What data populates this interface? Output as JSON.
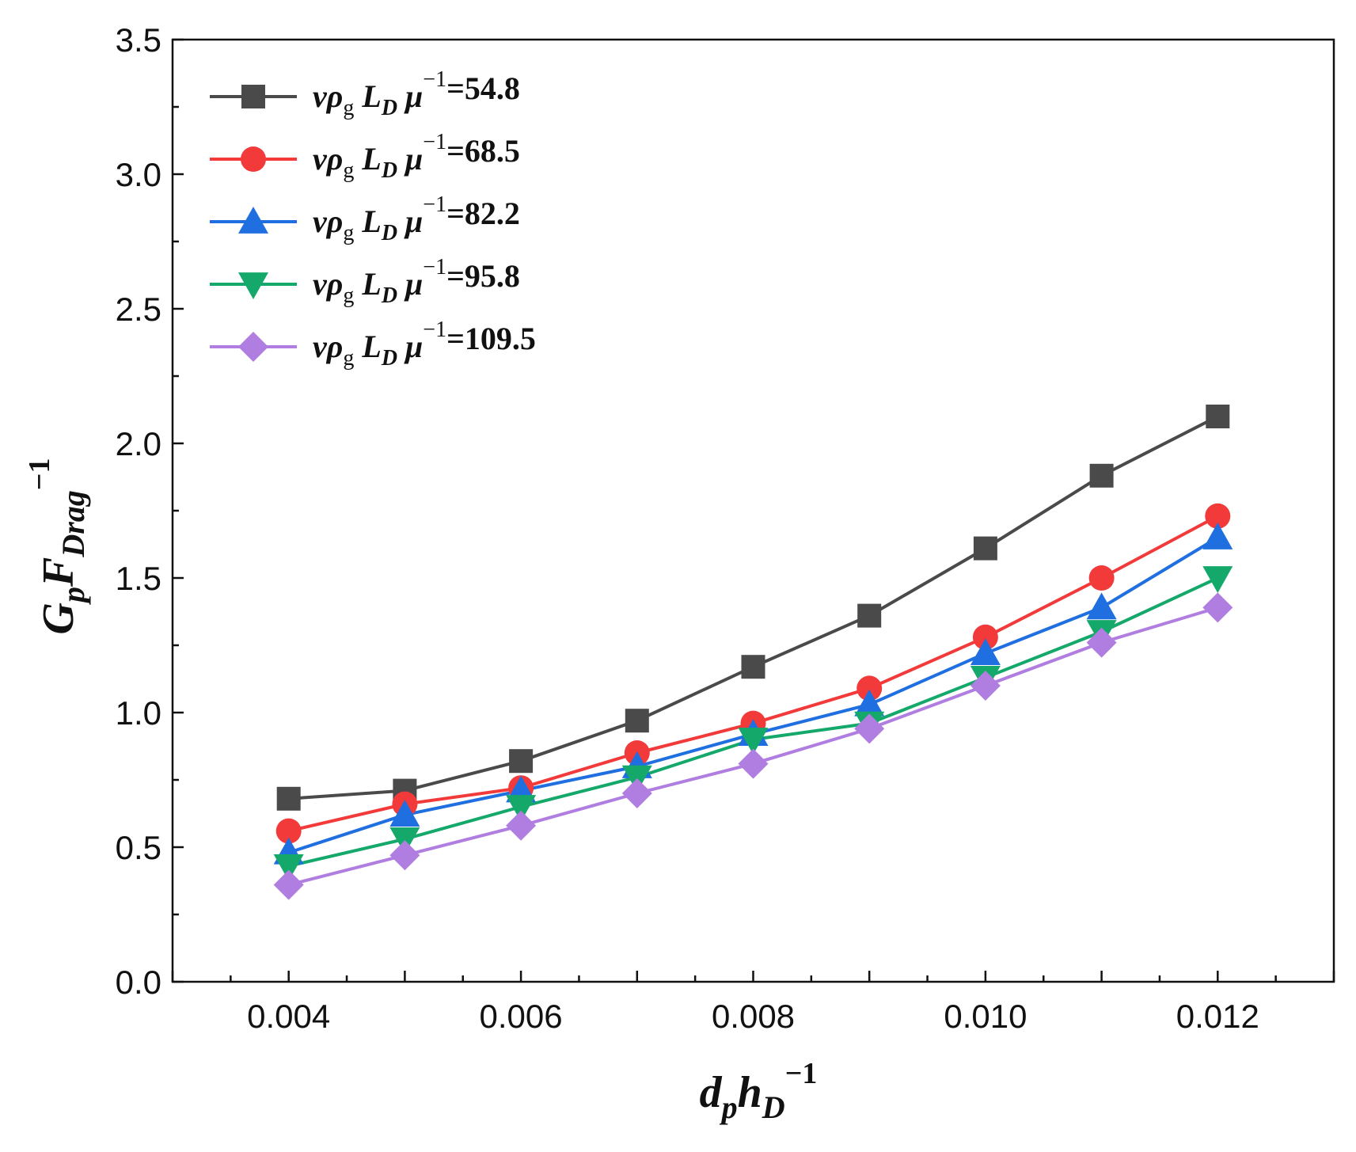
{
  "chart_data": {
    "type": "line",
    "title": "",
    "x": [
      0.004,
      0.005,
      0.006,
      0.007,
      0.008,
      0.009,
      0.01,
      0.011,
      0.012
    ],
    "xlim": [
      0.003,
      0.013
    ],
    "ylim": [
      0.0,
      3.5
    ],
    "x_ticks": [
      "0.004",
      "0.006",
      "0.008",
      "0.010",
      "0.012"
    ],
    "x_tick_values": [
      0.004,
      0.006,
      0.008,
      0.01,
      0.012
    ],
    "y_ticks": [
      "0.0",
      "0.5",
      "1.0",
      "1.5",
      "2.0",
      "2.5",
      "3.0",
      "3.5"
    ],
    "y_tick_values": [
      0.0,
      0.5,
      1.0,
      1.5,
      2.0,
      2.5,
      3.0,
      3.5
    ],
    "xlabel": {
      "base1": "d",
      "sub1": "p",
      "base2": "h",
      "sub2": "D",
      "sup": "−1"
    },
    "ylabel": {
      "base1": "G",
      "sub1": "p",
      "base2": "F",
      "sub2": "Drag",
      "sup": "−1"
    },
    "legend": {
      "placement": "top-left",
      "label_prefix": {
        "v": "v",
        "rho": "ρ",
        "g": "g",
        "L": "L",
        "D": "D",
        "mu": "μ",
        "sup": "−1",
        "eq": "="
      }
    },
    "grid": false,
    "series": [
      {
        "name": "54.8",
        "color": "#4a4a4a",
        "marker": "square",
        "values": [
          0.68,
          0.71,
          0.82,
          0.97,
          1.17,
          1.36,
          1.61,
          1.88,
          2.1
        ]
      },
      {
        "name": "68.5",
        "color": "#f23a3a",
        "marker": "circle",
        "values": [
          0.56,
          0.66,
          0.72,
          0.85,
          0.96,
          1.09,
          1.28,
          1.5,
          1.73
        ]
      },
      {
        "name": "82.2",
        "color": "#1f6fe0",
        "marker": "triangle-up",
        "values": [
          0.48,
          0.62,
          0.71,
          0.8,
          0.92,
          1.03,
          1.22,
          1.39,
          1.65
        ]
      },
      {
        "name": "95.8",
        "color": "#14a86b",
        "marker": "triangle-down",
        "values": [
          0.43,
          0.53,
          0.65,
          0.76,
          0.9,
          0.96,
          1.13,
          1.3,
          1.5
        ]
      },
      {
        "name": "109.5",
        "color": "#b07ee0",
        "marker": "diamond",
        "values": [
          0.36,
          0.47,
          0.58,
          0.7,
          0.81,
          0.94,
          1.1,
          1.26,
          1.39
        ]
      }
    ]
  }
}
